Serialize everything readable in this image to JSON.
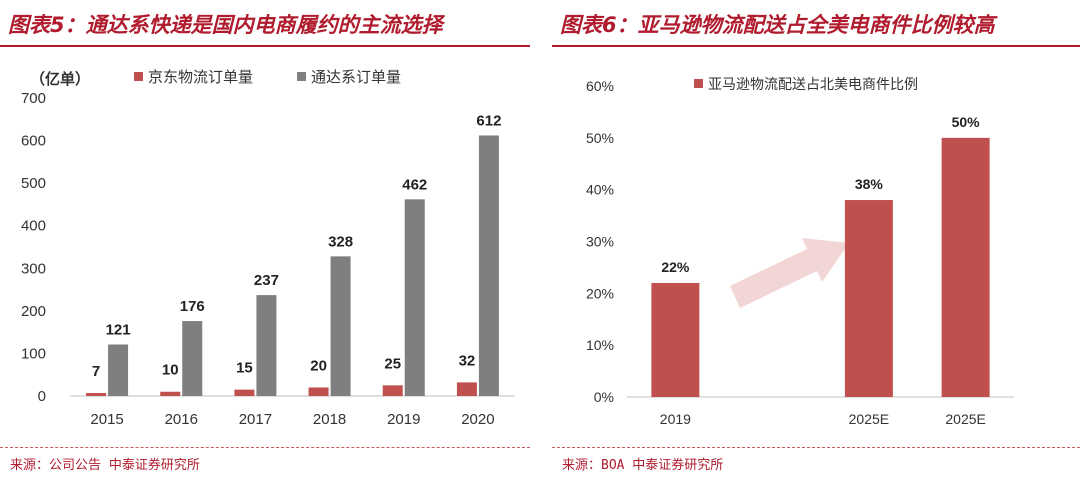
{
  "colors": {
    "accent": "#b01c2e",
    "red_bar": "#c0504d",
    "gray_bar": "#7f7f7f",
    "arrow": "#f2d6d5"
  },
  "left_panel": {
    "title": "图表5：通达系快递是国内电商履约的主流选择",
    "source": "来源：公司公告  中泰证券研究所"
  },
  "right_panel": {
    "title": "图表6：亚马逊物流配送占全美电商件比例较高",
    "source": "来源：BOA  中泰证券研究所"
  },
  "chart_data": [
    {
      "type": "bar",
      "title": "",
      "unit_label": "（亿单）",
      "xlabel": "",
      "ylabel": "亿单",
      "ylim": [
        0,
        700
      ],
      "yticks": [
        0,
        100,
        200,
        300,
        400,
        500,
        600,
        700
      ],
      "categories": [
        "2015",
        "2016",
        "2017",
        "2018",
        "2019",
        "2020"
      ],
      "series": [
        {
          "name": "京东物流订单量",
          "color": "#c0504d",
          "values": [
            7,
            10,
            15,
            20,
            25,
            32
          ]
        },
        {
          "name": "通达系订单量",
          "color": "#7f7f7f",
          "values": [
            121,
            176,
            237,
            328,
            462,
            612
          ]
        }
      ],
      "legend": "top",
      "grid": false
    },
    {
      "type": "bar",
      "title": "",
      "xlabel": "",
      "ylabel": "",
      "ylim": [
        0,
        0.6
      ],
      "yticks": [
        0,
        0.1,
        0.2,
        0.3,
        0.4,
        0.5,
        0.6
      ],
      "ytick_labels": [
        "0%",
        "10%",
        "20%",
        "30%",
        "40%",
        "50%",
        "60%"
      ],
      "categories": [
        "2019",
        "",
        "2025E",
        "2025E"
      ],
      "series": [
        {
          "name": "亚马逊物流配送占北美电商件比例",
          "color": "#c0504d",
          "values": [
            0.22,
            null,
            0.38,
            0.5
          ],
          "labels": [
            "22%",
            "",
            "38%",
            "50%"
          ]
        }
      ],
      "legend": "top",
      "grid": false,
      "annotation": "upward-trend-arrow"
    }
  ]
}
